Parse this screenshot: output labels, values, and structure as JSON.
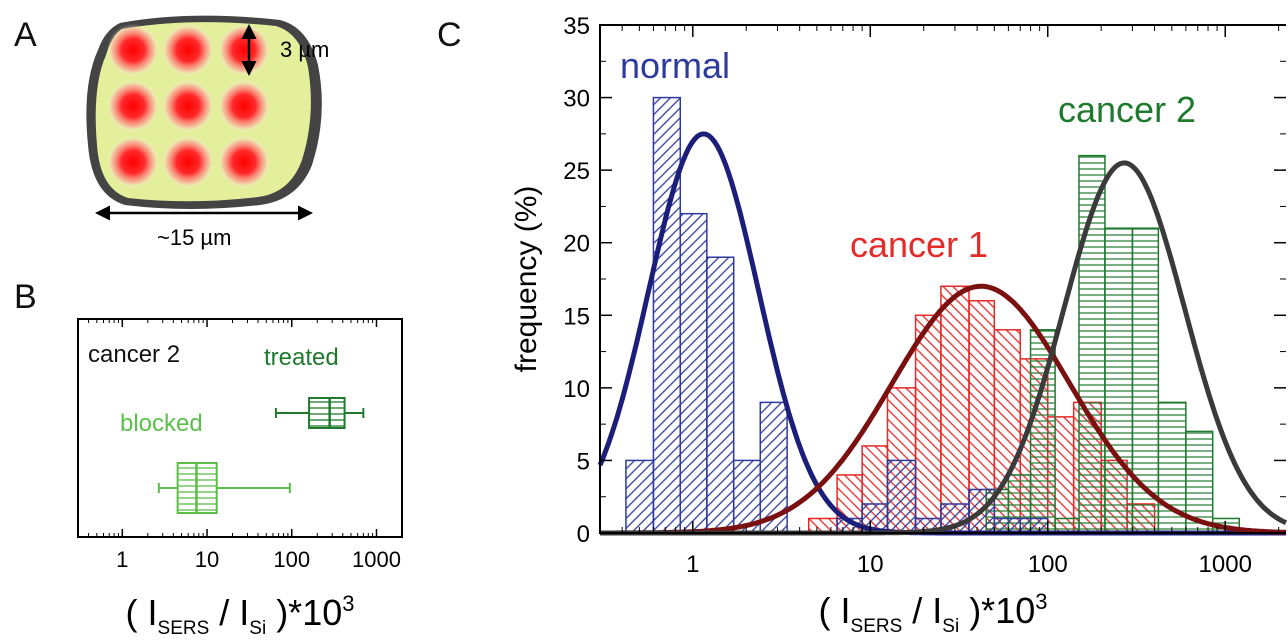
{
  "panels": {
    "a": {
      "letter": "A",
      "height_label": "3 µm",
      "width_label": "~15 µm"
    },
    "b": {
      "letter": "B"
    },
    "c": {
      "letter": "C"
    }
  },
  "colors": {
    "normal": "#2e3b9e",
    "cancer1": "#e52a2a",
    "cancer2": "#1f7a2e",
    "blocked": "#5bbf4a",
    "normal_fit": "#1c1f7a",
    "cancer1_fit": "#7a1010",
    "cancer2_fit": "#3a3a3a",
    "cell_body": "#e4ef9c",
    "cell_border": "#444444",
    "spot": "#ff1a1a"
  },
  "chart_data": [
    {
      "panel": "B",
      "type": "box",
      "x_scale": "log",
      "xlim": [
        0.3,
        2000
      ],
      "x_ticks": [
        "1",
        "10",
        "100",
        "1000"
      ],
      "xlabel": {
        "prefix": "( I",
        "sub1": "SERS",
        "mid": " / I",
        "sub2": "Si",
        "suffix": " )*10",
        "sup": "3"
      },
      "title_label": "cancer 2",
      "groups": [
        {
          "name": "treated",
          "whisker_low": 65,
          "q1": 160,
          "median": 280,
          "q3": 420,
          "whisker_high": 700
        },
        {
          "name": "blocked",
          "whisker_low": 2.7,
          "q1": 4.5,
          "median": 7.5,
          "q3": 13,
          "whisker_high": 95
        }
      ]
    },
    {
      "panel": "C",
      "type": "bar",
      "x_scale": "log",
      "xlim": [
        0.3,
        2200
      ],
      "ylim": [
        0,
        35
      ],
      "x_ticks": [
        "1",
        "10",
        "100",
        "1000"
      ],
      "y_ticks": [
        "0",
        "5",
        "10",
        "15",
        "20",
        "25",
        "30",
        "35"
      ],
      "ylabel": "frequency (%)",
      "xlabel": {
        "prefix": "( I",
        "sub1": "SERS",
        "mid": " / I",
        "sub2": "Si",
        "suffix": " )*10",
        "sup": "3"
      },
      "series": [
        {
          "name": "normal",
          "bins": [
            [
              0.42,
              0.6,
              5
            ],
            [
              0.6,
              0.85,
              30
            ],
            [
              0.85,
              1.2,
              22
            ],
            [
              1.2,
              1.7,
              19
            ],
            [
              1.7,
              2.4,
              5
            ],
            [
              2.4,
              3.4,
              9
            ],
            [
              6.5,
              9,
              1
            ],
            [
              9,
              12.5,
              2
            ],
            [
              12.5,
              18,
              5
            ],
            [
              18,
              25,
              1
            ],
            [
              25,
              36,
              2
            ],
            [
              36,
              50,
              3
            ],
            [
              50,
              70,
              1
            ],
            [
              70,
              100,
              1
            ]
          ]
        },
        {
          "name": "cancer 1",
          "bins": [
            [
              4.5,
              6.5,
              1
            ],
            [
              6.5,
              9,
              4
            ],
            [
              9,
              12.5,
              6
            ],
            [
              12.5,
              18,
              10
            ],
            [
              18,
              25,
              15
            ],
            [
              25,
              36,
              17
            ],
            [
              36,
              50,
              16
            ],
            [
              50,
              70,
              14
            ],
            [
              70,
              100,
              12
            ],
            [
              100,
              140,
              8
            ],
            [
              140,
              200,
              9
            ],
            [
              200,
              280,
              5
            ],
            [
              280,
              400,
              2
            ]
          ]
        },
        {
          "name": "cancer 2",
          "bins": [
            [
              45,
              60,
              3
            ],
            [
              60,
              80,
              4
            ],
            [
              80,
              110,
              14
            ],
            [
              110,
              150,
              1
            ],
            [
              150,
              210,
              26
            ],
            [
              210,
              300,
              21
            ],
            [
              300,
              420,
              21
            ],
            [
              420,
              600,
              9
            ],
            [
              600,
              850,
              7
            ],
            [
              850,
              1200,
              1
            ]
          ]
        }
      ],
      "fits": [
        {
          "name": "normal",
          "peak_x": 1.15,
          "peak_y": 27.5,
          "log_sigma": 0.31
        },
        {
          "name": "cancer 1",
          "peak_x": 42,
          "peak_y": 17,
          "log_sigma": 0.5
        },
        {
          "name": "cancer 2",
          "peak_x": 270,
          "peak_y": 25.5,
          "log_sigma": 0.34
        }
      ]
    }
  ]
}
